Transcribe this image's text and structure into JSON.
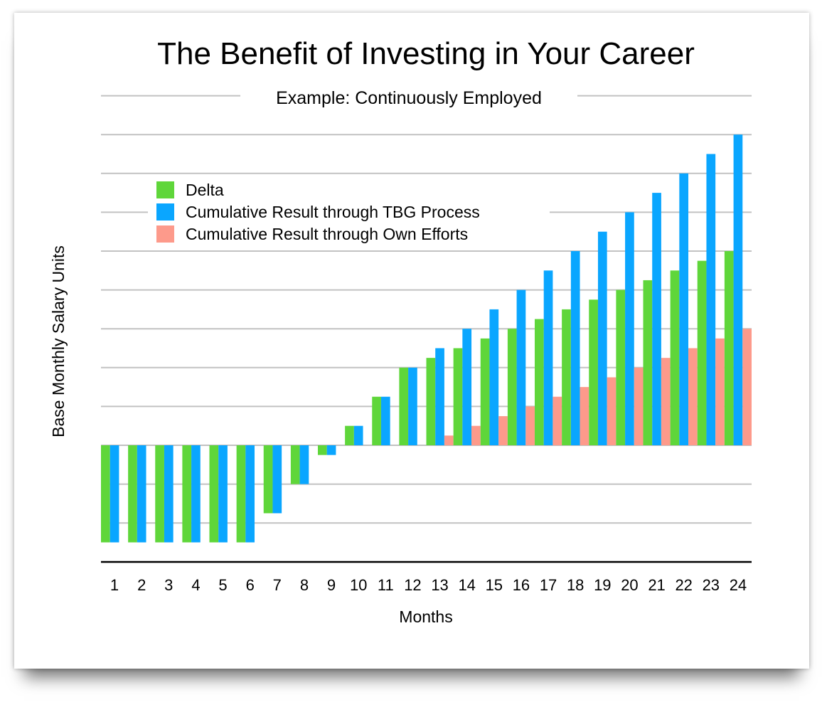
{
  "chart_data": {
    "type": "bar",
    "title": "The Benefit of Investing in Your Career",
    "subtitle": "Example: Continuously Employed",
    "xlabel": "Months",
    "ylabel": "Base Monthly Salary Units",
    "categories": [
      "1",
      "2",
      "3",
      "4",
      "5",
      "6",
      "7",
      "8",
      "9",
      "10",
      "11",
      "12",
      "13",
      "14",
      "15",
      "16",
      "17",
      "18",
      "19",
      "20",
      "21",
      "22",
      "23",
      "24"
    ],
    "series": [
      {
        "name": "Delta",
        "color": "#5fd63a",
        "values": [
          -2.5,
          -2.5,
          -2.5,
          -2.5,
          -2.5,
          -2.5,
          -1.75,
          -1,
          -0.25,
          0.5,
          1.25,
          2,
          2.25,
          2.5,
          2.75,
          3,
          3.25,
          3.5,
          3.75,
          4,
          4.25,
          4.5,
          4.75,
          5
        ]
      },
      {
        "name": "Cumulative Result through TBG Process",
        "color": "#0aa6ff",
        "values": [
          -2.5,
          -2.5,
          -2.5,
          -2.5,
          -2.5,
          -2.5,
          -1.75,
          -1,
          -0.25,
          0.5,
          1.25,
          2,
          2.5,
          3,
          3.5,
          4,
          4.5,
          5,
          5.5,
          6,
          6.5,
          7,
          7.5,
          8
        ]
      },
      {
        "name": "Cumulative Result through Own Efforts",
        "color": "#fd9a8b",
        "values": [
          0,
          0,
          0,
          0,
          0,
          0,
          0,
          0,
          0,
          0,
          0,
          0,
          0.25,
          0.5,
          0.75,
          1,
          1.25,
          1.5,
          1.75,
          2,
          2.25,
          2.5,
          2.75,
          3
        ]
      }
    ],
    "ylim": [
      -3,
      9
    ],
    "y_grid_step": 1,
    "y_tick_labels": false,
    "grid": true,
    "legend_position": "top-left"
  }
}
